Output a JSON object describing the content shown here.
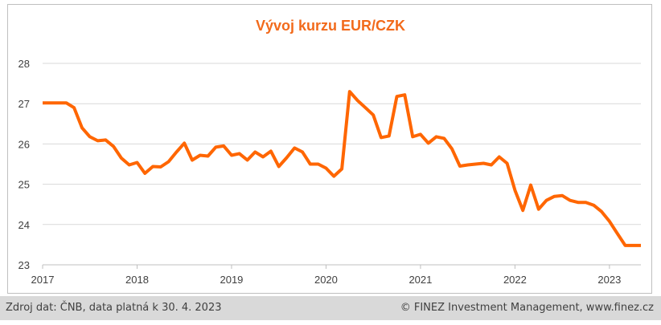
{
  "footer": {
    "source": "Zdroj dat: ČNB, data platná k 30. 4. 2023",
    "credit": "© FINEZ Investment Management, www.finez.cz"
  },
  "colors": {
    "line": "#ff6600",
    "title": "#f26a1b",
    "grid": "#d9d9d9"
  },
  "chart_data": {
    "type": "line",
    "title": "Vývoj kurzu EUR/CZK",
    "xlabel": "",
    "ylabel": "",
    "xlim": [
      2017.0,
      2023.333
    ],
    "ylim": [
      23,
      28
    ],
    "y_ticks": [
      23,
      24,
      25,
      26,
      27,
      28
    ],
    "x_ticks": [
      2017,
      2018,
      2019,
      2020,
      2021,
      2022,
      2023
    ],
    "x_tick_labels": [
      "2017",
      "2018",
      "2019",
      "2020",
      "2021",
      "2022",
      "2023"
    ],
    "grid": "horizontal",
    "legend": "none",
    "series": [
      {
        "x": [
          2017.0,
          2017.083,
          2017.167,
          2017.25,
          2017.333,
          2017.417,
          2017.5,
          2017.583,
          2017.667,
          2017.75,
          2017.833,
          2017.917,
          2018.0,
          2018.083,
          2018.167,
          2018.25,
          2018.333,
          2018.417,
          2018.5,
          2018.583,
          2018.667,
          2018.75,
          2018.833,
          2018.917,
          2019.0,
          2019.083,
          2019.167,
          2019.25,
          2019.333,
          2019.417,
          2019.5,
          2019.583,
          2019.667,
          2019.75,
          2019.833,
          2019.917,
          2020.0,
          2020.083,
          2020.167,
          2020.25,
          2020.333,
          2020.417,
          2020.5,
          2020.583,
          2020.667,
          2020.75,
          2020.833,
          2020.917,
          2021.0,
          2021.083,
          2021.167,
          2021.25,
          2021.333,
          2021.417,
          2021.5,
          2021.583,
          2021.667,
          2021.75,
          2021.833,
          2021.917,
          2022.0,
          2022.083,
          2022.167,
          2022.25,
          2022.333,
          2022.417,
          2022.5,
          2022.583,
          2022.667,
          2022.75,
          2022.833,
          2022.917,
          2023.0,
          2023.083,
          2023.167,
          2023.25,
          2023.333
        ],
        "values": [
          27.02,
          27.02,
          27.02,
          27.02,
          26.9,
          26.4,
          26.18,
          26.08,
          26.1,
          25.94,
          25.65,
          25.48,
          25.54,
          25.27,
          25.44,
          25.43,
          25.56,
          25.8,
          26.02,
          25.6,
          25.72,
          25.7,
          25.92,
          25.95,
          25.72,
          25.76,
          25.6,
          25.8,
          25.68,
          25.82,
          25.44,
          25.66,
          25.9,
          25.8,
          25.5,
          25.5,
          25.4,
          25.2,
          25.38,
          27.3,
          27.08,
          26.9,
          26.72,
          26.16,
          26.2,
          27.18,
          27.22,
          26.18,
          26.24,
          26.02,
          26.18,
          26.14,
          25.88,
          25.45,
          25.48,
          25.5,
          25.52,
          25.48,
          25.68,
          25.52,
          24.85,
          24.35,
          24.98,
          24.38,
          24.6,
          24.7,
          24.72,
          24.6,
          24.55,
          24.55,
          24.48,
          24.32,
          24.08,
          23.78,
          23.48,
          23.48,
          23.48
        ]
      }
    ]
  }
}
